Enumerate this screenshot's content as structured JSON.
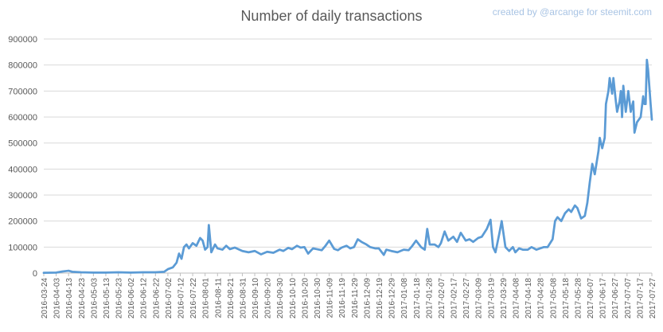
{
  "chart_data": {
    "type": "line",
    "title": "Number of daily transactions",
    "credit": "created by @arcange for steemit.com",
    "ylim": [
      0,
      900000
    ],
    "yticks": [
      0,
      100000,
      200000,
      300000,
      400000,
      500000,
      600000,
      700000,
      800000,
      900000
    ],
    "ytick_labels": [
      "0",
      "100000",
      "200000",
      "300000",
      "400000",
      "500000",
      "600000",
      "700000",
      "800000",
      "900000"
    ],
    "grid": true,
    "legend": "none",
    "xlim": [
      "2016-03-24",
      "2017-07-27"
    ],
    "xtick_labels": [
      "2016-03-24",
      "2016-04-03",
      "2016-04-13",
      "2016-04-23",
      "2016-05-03",
      "2016-05-13",
      "2016-05-23",
      "2016-06-02",
      "2016-06-12",
      "2016-06-22",
      "2016-07-02",
      "2016-07-12",
      "2016-07-22",
      "2016-08-01",
      "2016-08-11",
      "2016-08-21",
      "2016-08-31",
      "2016-09-10",
      "2016-09-20",
      "2016-09-30",
      "2016-10-10",
      "2016-10-20",
      "2016-10-30",
      "2016-11-09",
      "2016-11-19",
      "2016-11-29",
      "2016-12-09",
      "2016-12-19",
      "2016-12-29",
      "2017-01-08",
      "2017-01-18",
      "2017-01-28",
      "2017-02-07",
      "2017-02-17",
      "2017-02-27",
      "2017-03-09",
      "2017-03-19",
      "2017-03-29",
      "2017-04-08",
      "2017-04-18",
      "2017-04-28",
      "2017-05-08",
      "2017-05-18",
      "2017-05-28",
      "2017-06-07",
      "2017-06-17",
      "2017-06-27",
      "2017-07-07",
      "2017-07-17",
      "2017-07-27"
    ],
    "series": [
      {
        "color": "#5b9bd5",
        "points": [
          [
            "2016-03-24",
            1000
          ],
          [
            "2016-04-03",
            2000
          ],
          [
            "2016-04-08",
            6000
          ],
          [
            "2016-04-13",
            9000
          ],
          [
            "2016-04-16",
            5000
          ],
          [
            "2016-04-23",
            3000
          ],
          [
            "2016-05-03",
            2000
          ],
          [
            "2016-05-13",
            2000
          ],
          [
            "2016-05-23",
            3000
          ],
          [
            "2016-06-02",
            2000
          ],
          [
            "2016-06-12",
            3000
          ],
          [
            "2016-06-22",
            3000
          ],
          [
            "2016-06-29",
            5000
          ],
          [
            "2016-07-02",
            15000
          ],
          [
            "2016-07-06",
            22000
          ],
          [
            "2016-07-09",
            40000
          ],
          [
            "2016-07-11",
            75000
          ],
          [
            "2016-07-13",
            55000
          ],
          [
            "2016-07-15",
            100000
          ],
          [
            "2016-07-17",
            110000
          ],
          [
            "2016-07-19",
            95000
          ],
          [
            "2016-07-22",
            115000
          ],
          [
            "2016-07-25",
            105000
          ],
          [
            "2016-07-28",
            135000
          ],
          [
            "2016-07-30",
            125000
          ],
          [
            "2016-08-01",
            90000
          ],
          [
            "2016-08-03",
            100000
          ],
          [
            "2016-08-04",
            185000
          ],
          [
            "2016-08-06",
            80000
          ],
          [
            "2016-08-09",
            110000
          ],
          [
            "2016-08-11",
            95000
          ],
          [
            "2016-08-15",
            90000
          ],
          [
            "2016-08-18",
            105000
          ],
          [
            "2016-08-21",
            92000
          ],
          [
            "2016-08-25",
            98000
          ],
          [
            "2016-08-31",
            85000
          ],
          [
            "2016-09-05",
            80000
          ],
          [
            "2016-09-10",
            85000
          ],
          [
            "2016-09-15",
            72000
          ],
          [
            "2016-09-20",
            82000
          ],
          [
            "2016-09-25",
            78000
          ],
          [
            "2016-09-30",
            90000
          ],
          [
            "2016-10-03",
            85000
          ],
          [
            "2016-10-07",
            97000
          ],
          [
            "2016-10-10",
            92000
          ],
          [
            "2016-10-14",
            105000
          ],
          [
            "2016-10-17",
            98000
          ],
          [
            "2016-10-20",
            100000
          ],
          [
            "2016-10-23",
            75000
          ],
          [
            "2016-10-27",
            95000
          ],
          [
            "2016-10-30",
            92000
          ],
          [
            "2016-11-03",
            88000
          ],
          [
            "2016-11-06",
            105000
          ],
          [
            "2016-11-09",
            125000
          ],
          [
            "2016-11-13",
            93000
          ],
          [
            "2016-11-16",
            88000
          ],
          [
            "2016-11-19",
            98000
          ],
          [
            "2016-11-23",
            105000
          ],
          [
            "2016-11-26",
            95000
          ],
          [
            "2016-11-29",
            100000
          ],
          [
            "2016-12-02",
            130000
          ],
          [
            "2016-12-05",
            120000
          ],
          [
            "2016-12-09",
            110000
          ],
          [
            "2016-12-12",
            100000
          ],
          [
            "2016-12-16",
            95000
          ],
          [
            "2016-12-19",
            95000
          ],
          [
            "2016-12-23",
            70000
          ],
          [
            "2016-12-25",
            90000
          ],
          [
            "2016-12-29",
            85000
          ],
          [
            "2017-01-03",
            80000
          ],
          [
            "2017-01-08",
            90000
          ],
          [
            "2017-01-12",
            88000
          ],
          [
            "2017-01-15",
            105000
          ],
          [
            "2017-01-18",
            125000
          ],
          [
            "2017-01-22",
            100000
          ],
          [
            "2017-01-25",
            90000
          ],
          [
            "2017-01-27",
            170000
          ],
          [
            "2017-01-29",
            110000
          ],
          [
            "2017-02-02",
            110000
          ],
          [
            "2017-02-05",
            100000
          ],
          [
            "2017-02-07",
            115000
          ],
          [
            "2017-02-10",
            160000
          ],
          [
            "2017-02-13",
            125000
          ],
          [
            "2017-02-17",
            140000
          ],
          [
            "2017-02-20",
            120000
          ],
          [
            "2017-02-23",
            155000
          ],
          [
            "2017-02-27",
            125000
          ],
          [
            "2017-03-02",
            130000
          ],
          [
            "2017-03-05",
            120000
          ],
          [
            "2017-03-09",
            135000
          ],
          [
            "2017-03-12",
            140000
          ],
          [
            "2017-03-16",
            170000
          ],
          [
            "2017-03-19",
            205000
          ],
          [
            "2017-03-21",
            100000
          ],
          [
            "2017-03-23",
            80000
          ],
          [
            "2017-03-26",
            150000
          ],
          [
            "2017-03-28",
            200000
          ],
          [
            "2017-03-31",
            100000
          ],
          [
            "2017-04-03",
            85000
          ],
          [
            "2017-04-06",
            100000
          ],
          [
            "2017-04-08",
            80000
          ],
          [
            "2017-04-11",
            95000
          ],
          [
            "2017-04-14",
            90000
          ],
          [
            "2017-04-18",
            90000
          ],
          [
            "2017-04-21",
            100000
          ],
          [
            "2017-04-25",
            90000
          ],
          [
            "2017-04-28",
            95000
          ],
          [
            "2017-05-01",
            100000
          ],
          [
            "2017-05-04",
            100000
          ],
          [
            "2017-05-08",
            130000
          ],
          [
            "2017-05-10",
            200000
          ],
          [
            "2017-05-12",
            215000
          ],
          [
            "2017-05-15",
            200000
          ],
          [
            "2017-05-18",
            230000
          ],
          [
            "2017-05-21",
            245000
          ],
          [
            "2017-05-23",
            235000
          ],
          [
            "2017-05-26",
            260000
          ],
          [
            "2017-05-28",
            250000
          ],
          [
            "2017-05-31",
            210000
          ],
          [
            "2017-06-03",
            220000
          ],
          [
            "2017-06-05",
            270000
          ],
          [
            "2017-06-07",
            350000
          ],
          [
            "2017-06-09",
            420000
          ],
          [
            "2017-06-11",
            380000
          ],
          [
            "2017-06-14",
            470000
          ],
          [
            "2017-06-15",
            520000
          ],
          [
            "2017-06-17",
            480000
          ],
          [
            "2017-06-19",
            520000
          ],
          [
            "2017-06-20",
            650000
          ],
          [
            "2017-06-22",
            700000
          ],
          [
            "2017-06-23",
            750000
          ],
          [
            "2017-06-25",
            690000
          ],
          [
            "2017-06-26",
            750000
          ],
          [
            "2017-06-28",
            660000
          ],
          [
            "2017-06-29",
            620000
          ],
          [
            "2017-07-01",
            660000
          ],
          [
            "2017-07-02",
            700000
          ],
          [
            "2017-07-03",
            600000
          ],
          [
            "2017-07-04",
            720000
          ],
          [
            "2017-07-06",
            620000
          ],
          [
            "2017-07-08",
            700000
          ],
          [
            "2017-07-10",
            620000
          ],
          [
            "2017-07-12",
            660000
          ],
          [
            "2017-07-13",
            540000
          ],
          [
            "2017-07-15",
            580000
          ],
          [
            "2017-07-18",
            600000
          ],
          [
            "2017-07-20",
            680000
          ],
          [
            "2017-07-21",
            650000
          ],
          [
            "2017-07-22",
            650000
          ],
          [
            "2017-07-23",
            820000
          ],
          [
            "2017-07-24",
            780000
          ],
          [
            "2017-07-26",
            650000
          ],
          [
            "2017-07-27",
            590000
          ]
        ]
      }
    ]
  }
}
